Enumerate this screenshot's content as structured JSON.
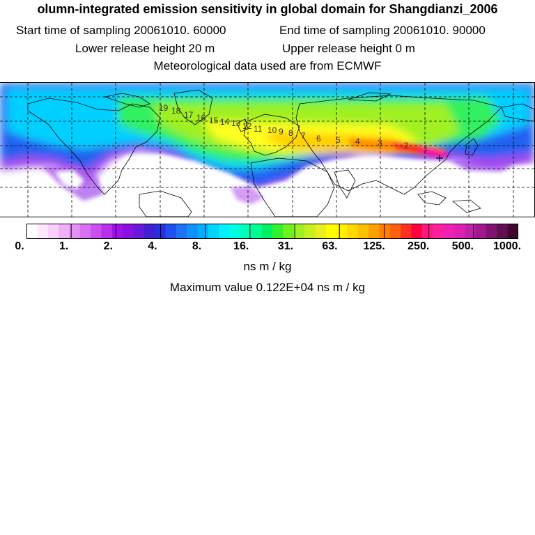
{
  "header": {
    "title": "olumn-integrated emission sensitivity in global domain for Shangdianzi_2006",
    "start_sampling": "Start time of sampling 20061010. 60000",
    "end_sampling": "End time of sampling 20061010. 90000",
    "lower_release": "Lower release height   20 m",
    "upper_release": "Upper release height    0 m",
    "met_data": "Meteorological data used are from ECMWF"
  },
  "legend": {
    "tick_labels": [
      "0.",
      "1.",
      "2.",
      "4.",
      "8.",
      "16.",
      "31.",
      "63.",
      "125.",
      "250.",
      "500.",
      "1000."
    ],
    "colors": [
      "#ffffff",
      "#fde8fe",
      "#f9d0fc",
      "#f0b0f8",
      "#e590f5",
      "#d870f2",
      "#c950ef",
      "#b830ec",
      "#a010e8",
      "#8810e0",
      "#6818d8",
      "#4020d0",
      "#2830e0",
      "#2050ef",
      "#2070f8",
      "#1090ff",
      "#00b0ff",
      "#00d4ff",
      "#00f0ff",
      "#00ffe0",
      "#00ffb8",
      "#00ff90",
      "#00f060",
      "#30f030",
      "#70f020",
      "#a0f020",
      "#c8f020",
      "#e8f020",
      "#ffff00",
      "#fff000",
      "#ffd800",
      "#ffc000",
      "#ffa000",
      "#ff8000",
      "#ff6010",
      "#ff3020",
      "#ff0040",
      "#ff1880",
      "#ff20a0",
      "#f020b0",
      "#e020b0",
      "#c020a8",
      "#a0188c",
      "#801470",
      "#601050",
      "#400830"
    ],
    "unit": "ns m / kg",
    "max_value": "Maximum value  0.122E+04 ns m / kg"
  },
  "map": {
    "receptor": "Shangdianzi",
    "contour_labels": [
      "19",
      "18",
      "17",
      "16",
      "15",
      "14",
      "13",
      "12",
      "11",
      "10",
      "9",
      "8",
      "7",
      "6",
      "5",
      "4",
      "3",
      "2",
      "1"
    ]
  }
}
